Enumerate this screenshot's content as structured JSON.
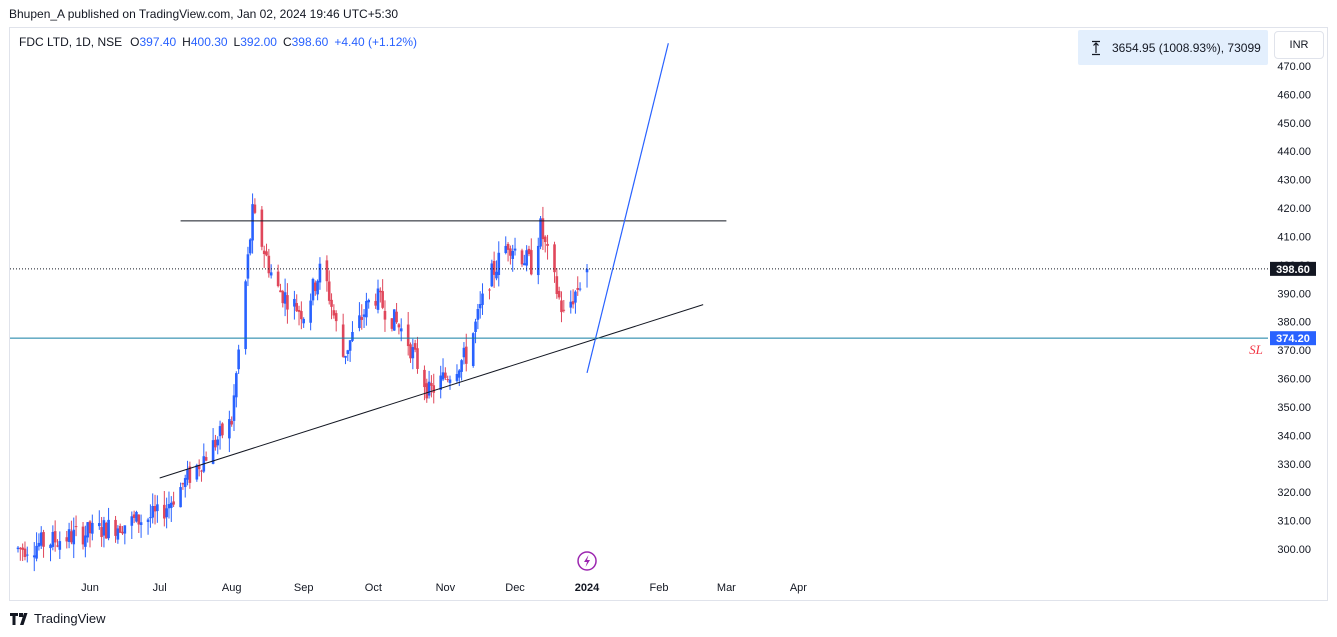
{
  "header": {
    "published": "Bhupen_A published on TradingView.com, Jan 02, 2024 19:46 UTC+5:30"
  },
  "legend": {
    "symbol": "FDC LTD, 1D, NSE",
    "o_label": "O",
    "o_value": "397.40",
    "h_label": "H",
    "h_value": "400.30",
    "l_label": "L",
    "l_value": "392.00",
    "c_label": "C",
    "c_value": "398.60",
    "change": "+4.40 (+1.12%)"
  },
  "measure": {
    "text": "3654.95 (1008.93%), 73099",
    "icon": "measure-icon"
  },
  "currency": "INR",
  "footer": {
    "brand": "TradingView",
    "icon": "tradingview-logo-icon"
  },
  "colors": {
    "up": "#2962ff",
    "down": "#e0475b",
    "grid": "#e0e3eb",
    "sl_line": "#127ea3",
    "sl_text": "#f23645",
    "price_label": "#131722",
    "trendline_blue": "#2962ff",
    "trendline_black": "#131722",
    "event_icon": "#9c27b0"
  },
  "chart_data": {
    "type": "candlestick",
    "title": "FDC LTD, 1D, NSE",
    "ylim": [
      292,
      477
    ],
    "y_ticks": [
      "470.00",
      "460.00",
      "450.00",
      "440.00",
      "430.00",
      "420.00",
      "410.00",
      "400.00",
      "390.00",
      "380.00",
      "370.00",
      "360.00",
      "350.00",
      "340.00",
      "330.00",
      "320.00",
      "310.00",
      "300.00"
    ],
    "x_ticks": [
      "Jun",
      "Jul",
      "Aug",
      "Sep",
      "Oct",
      "Nov",
      "Dec",
      "2024",
      "Feb",
      "Mar",
      "Apr"
    ],
    "last_price": {
      "value": 398.6,
      "label": "398.60"
    },
    "sl_level": {
      "value": 374.2,
      "label": "374.20",
      "text": "SL"
    },
    "resistance": {
      "value": 415.5,
      "from": "2023-07-10",
      "to": "2024-03-01"
    },
    "trendline_support": {
      "p1": [
        "2023-07-01",
        325
      ],
      "p2": [
        "2024-02-20",
        386
      ]
    },
    "trendline_blue": {
      "p1": [
        "2024-01-01",
        362
      ],
      "p2": [
        "2024-02-05",
        478
      ]
    },
    "anchors": [
      [
        "2023-05-01",
        300
      ],
      [
        "2023-06-01",
        306
      ],
      [
        "2023-07-01",
        312
      ],
      [
        "2023-08-01",
        345
      ],
      [
        "2023-08-10",
        418
      ],
      [
        "2023-08-20",
        392
      ],
      [
        "2023-09-01",
        383
      ],
      [
        "2023-09-09",
        400
      ],
      [
        "2023-09-18",
        368
      ],
      [
        "2023-10-01",
        390
      ],
      [
        "2023-10-15",
        375
      ],
      [
        "2023-10-25",
        355
      ],
      [
        "2023-11-10",
        368
      ],
      [
        "2023-11-20",
        395
      ],
      [
        "2023-11-28",
        408
      ],
      [
        "2023-12-08",
        400
      ],
      [
        "2023-12-12",
        413
      ],
      [
        "2023-12-16",
        400
      ],
      [
        "2023-12-22",
        382
      ],
      [
        "2024-01-01",
        398.6
      ]
    ],
    "events": [
      {
        "date": "2024-01-01",
        "icon": "dividend-lightning-icon"
      }
    ]
  }
}
